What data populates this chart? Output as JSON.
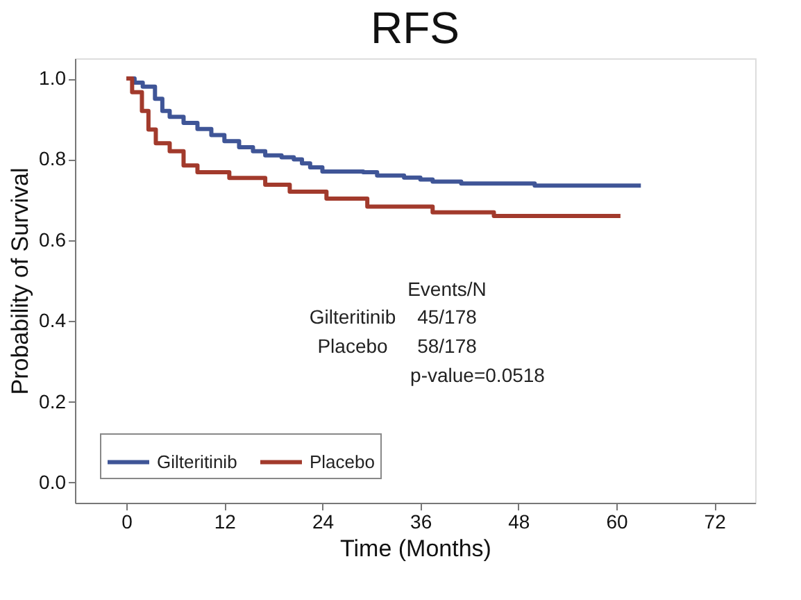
{
  "chart_data": {
    "type": "step",
    "title": "RFS",
    "xlabel": "Time (Months)",
    "ylabel": "Probability of Survival",
    "series": [
      {
        "name": "Gilteritinib",
        "color": "#3f5597",
        "x": [
          0,
          1,
          2,
          3.5,
          4.4,
          5.3,
          7,
          8.7,
          10.4,
          12,
          13.8,
          15.5,
          17,
          19,
          20.5,
          21.5,
          22.5,
          24,
          29,
          30.7,
          34,
          36,
          37.5,
          41,
          50,
          63
        ],
        "values": [
          1.0,
          0.99,
          0.98,
          0.95,
          0.92,
          0.905,
          0.89,
          0.875,
          0.86,
          0.845,
          0.83,
          0.82,
          0.81,
          0.805,
          0.8,
          0.79,
          0.78,
          0.77,
          0.768,
          0.76,
          0.755,
          0.75,
          0.745,
          0.74,
          0.735,
          0.735
        ]
      },
      {
        "name": "Placebo",
        "color": "#a23a2c",
        "x": [
          0,
          0.7,
          1.9,
          2.7,
          3.6,
          5.3,
          7,
          8.7,
          12.6,
          17,
          20,
          24.5,
          29.5,
          37.5,
          45,
          60.5
        ],
        "values": [
          1.0,
          0.966,
          0.92,
          0.874,
          0.84,
          0.82,
          0.785,
          0.768,
          0.754,
          0.737,
          0.72,
          0.703,
          0.683,
          0.669,
          0.66,
          0.66
        ]
      }
    ],
    "xlim": [
      -6.3,
      77
    ],
    "xticks": [
      0,
      12,
      24,
      36,
      48,
      60,
      72
    ],
    "ylim": [
      -0.05,
      1.05
    ],
    "yticks": [
      {
        "value": 0,
        "label": "0.0"
      },
      {
        "value": 0.2,
        "label": "0.2"
      },
      {
        "value": 0.4,
        "label": "0.4"
      },
      {
        "value": 0.6,
        "label": "0.6"
      },
      {
        "value": 0.8,
        "label": "0.8"
      },
      {
        "value": 1,
        "label": "1.0"
      }
    ],
    "annotations": [
      "Events/N",
      "Gilteritinib",
      "45/178",
      "Placebo",
      "58/178",
      "p-value=0.0518"
    ],
    "legend": "bottom left",
    "grid": false
  }
}
